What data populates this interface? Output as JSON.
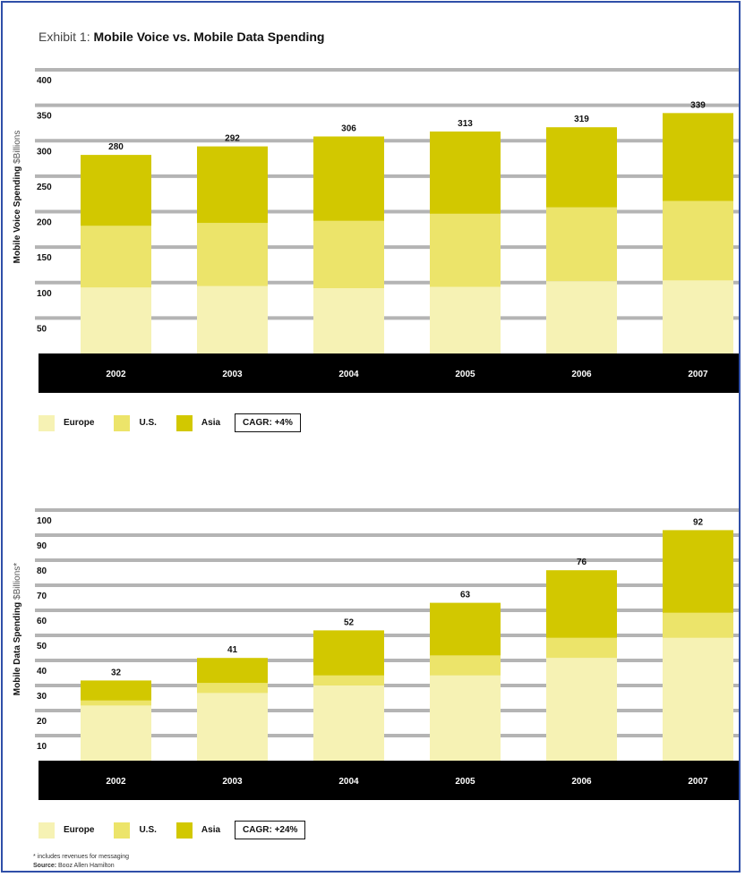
{
  "header": {
    "prefix": "Exhibit 1: ",
    "title": "Mobile Voice vs. Mobile Data Spending"
  },
  "colors": {
    "europe": "#f6f2b4",
    "us": "#ece46a",
    "asia": "#d2c800",
    "axis_band": "#000000",
    "grid": "#b4b4b4"
  },
  "chart_data": [
    {
      "type": "bar",
      "stacked": true,
      "categories": [
        "2002",
        "2003",
        "2004",
        "2005",
        "2006",
        "2007"
      ],
      "series": [
        {
          "name": "Europe",
          "values": [
            93,
            95,
            92,
            94,
            102,
            103
          ]
        },
        {
          "name": "U.S.",
          "values": [
            87,
            89,
            95,
            103,
            104,
            112
          ]
        },
        {
          "name": "Asia",
          "values": [
            100,
            108,
            119,
            116,
            113,
            124
          ]
        }
      ],
      "totals": [
        "280",
        "292",
        "306",
        "313",
        "319",
        "339"
      ],
      "ylabel": "Mobile Voice Spending",
      "ylabel_unit": "$Billions",
      "ylim": [
        0,
        400
      ],
      "yticks": [
        "50",
        "100",
        "150",
        "200",
        "250",
        "300",
        "350",
        "400"
      ],
      "legend": [
        "Europe",
        "U.S.",
        "Asia"
      ],
      "annotation": "CAGR: +4%"
    },
    {
      "type": "bar",
      "stacked": true,
      "categories": [
        "2002",
        "2003",
        "2004",
        "2005",
        "2006",
        "2007"
      ],
      "series": [
        {
          "name": "Europe",
          "values": [
            22,
            27,
            30,
            34,
            41,
            49
          ]
        },
        {
          "name": "U.S.",
          "values": [
            2,
            4,
            4,
            8,
            8,
            10
          ]
        },
        {
          "name": "Asia",
          "values": [
            8,
            10,
            18,
            21,
            27,
            33
          ]
        }
      ],
      "totals": [
        "32",
        "41",
        "52",
        "63",
        "76",
        "92"
      ],
      "ylabel": "Mobile Data Spending",
      "ylabel_unit": "$Billions*",
      "ylim": [
        0,
        100
      ],
      "yticks": [
        "10",
        "20",
        "30",
        "40",
        "50",
        "60",
        "70",
        "80",
        "90",
        "100"
      ],
      "legend": [
        "Europe",
        "U.S.",
        "Asia"
      ],
      "annotation": "CAGR: +24%"
    }
  ],
  "footnote": "* includes revenues for messaging",
  "source": {
    "label": "Source:",
    "text": "Booz Allen Hamilton"
  }
}
